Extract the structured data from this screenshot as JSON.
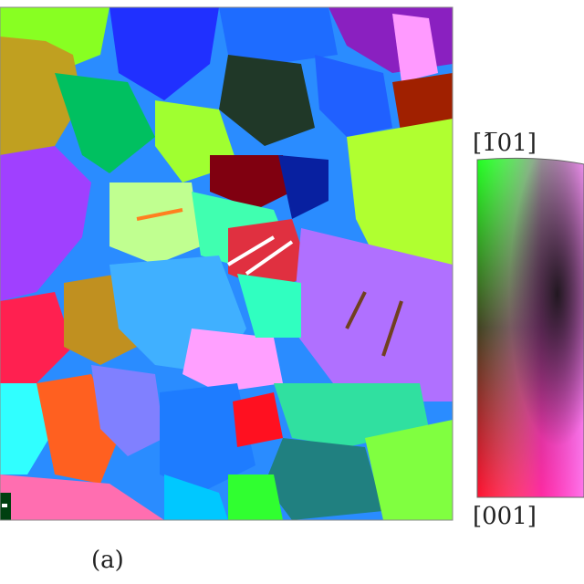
{
  "labels": {
    "top_direction": "[1̅01]",
    "bottom_direction": "[001]",
    "panel": "(a)"
  }
}
